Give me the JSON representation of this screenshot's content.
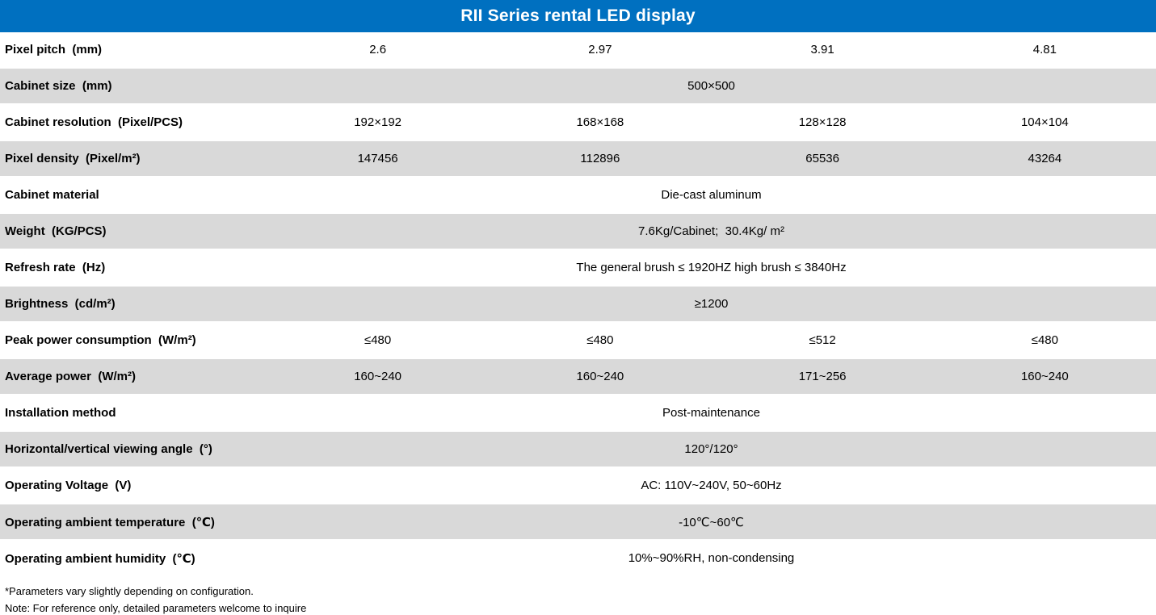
{
  "header": {
    "title": "RII Series rental LED display",
    "bg_color": "#0070C0",
    "text_color": "#FFFFFF"
  },
  "table": {
    "row_alt_color": "#D9D9D9",
    "row_base_color": "#FFFFFF",
    "rows": [
      {
        "label": "Pixel pitch  (mm)",
        "values": [
          "2.6",
          "2.97",
          "3.91",
          "4.81"
        ],
        "shaded": false
      },
      {
        "label": "Cabinet size  (mm)",
        "span_value": "500×500",
        "shaded": true
      },
      {
        "label": "Cabinet resolution  (Pixel/PCS)",
        "values": [
          "192×192",
          "168×168",
          "128×128",
          "104×104"
        ],
        "shaded": false
      },
      {
        "label": "Pixel density  (Pixel/m²)",
        "values": [
          "147456",
          "112896",
          "65536",
          "43264"
        ],
        "shaded": true
      },
      {
        "label": "Cabinet material",
        "span_value": "Die-cast aluminum",
        "shaded": false
      },
      {
        "label": "Weight  (KG/PCS)",
        "span_value": "7.6Kg/Cabinet;  30.4Kg/ m²",
        "shaded": true
      },
      {
        "label": "Refresh rate  (Hz)",
        "span_value": "The general brush ≤ 1920HZ high brush ≤ 3840Hz",
        "shaded": false
      },
      {
        "label": "Brightness  (cd/m²)",
        "span_value": "≥1200",
        "shaded": true
      },
      {
        "label": "Peak power consumption  (W/m²)",
        "values": [
          "≤480",
          "≤480",
          "≤512",
          "≤480"
        ],
        "shaded": false
      },
      {
        "label": "Average power  (W/m²)",
        "values": [
          "160~240",
          "160~240",
          "171~256",
          "160~240"
        ],
        "shaded": true
      },
      {
        "label": "Installation method",
        "span_value": "Post-maintenance",
        "shaded": false
      },
      {
        "label": "Horizontal/vertical viewing angle  (°)",
        "span_value": "120°/120°",
        "shaded": true
      },
      {
        "label": "Operating Voltage  (V)",
        "span_value": "AC: 110V~240V, 50~60Hz",
        "shaded": false
      },
      {
        "label": "Operating ambient temperature  (℃)",
        "span_value": "-10℃~60℃",
        "shaded": true
      },
      {
        "label": "Operating ambient humidity  (℃)",
        "span_value": "10%~90%RH, non-condensing",
        "shaded": false
      }
    ]
  },
  "footnotes": [
    "*Parameters vary slightly depending on configuration.",
    "Note: For reference only, detailed parameters welcome to inquire"
  ]
}
